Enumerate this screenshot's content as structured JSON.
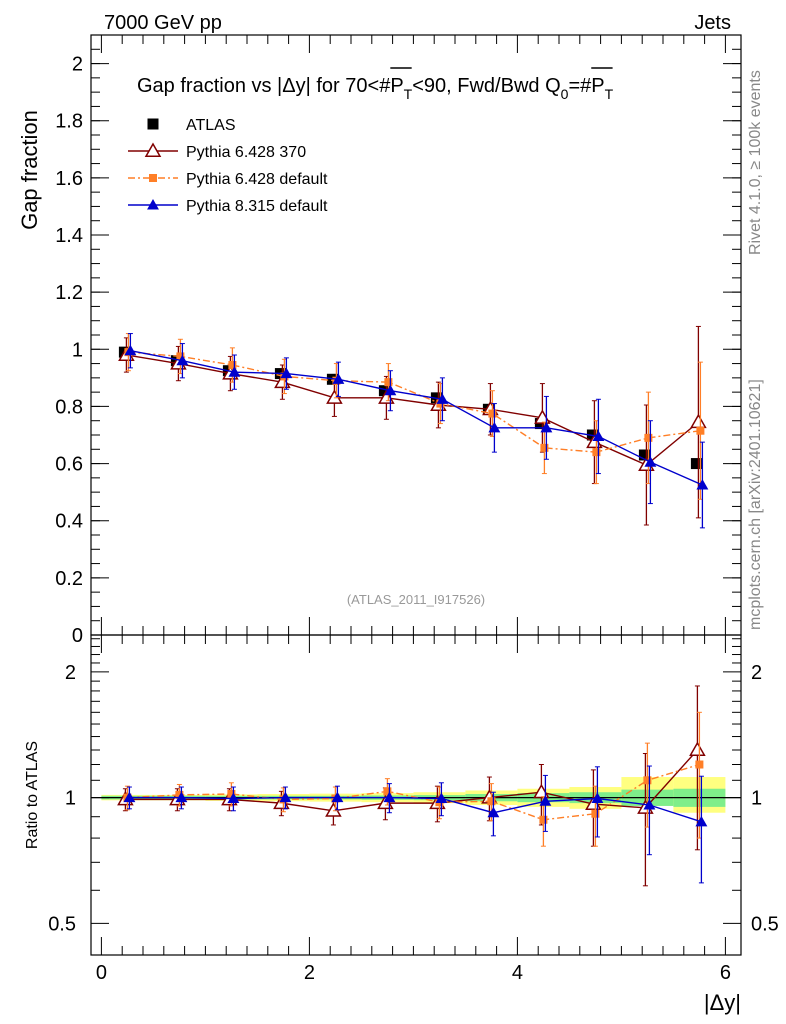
{
  "header": {
    "left": "7000 GeV pp",
    "right": "Jets"
  },
  "side_labels": {
    "rivet": "Rivet 4.1.0, ≥ 100k events",
    "mcplots": "mcplots.cern.ch [arXiv:2401.10621]"
  },
  "chart_data": [
    {
      "type": "line",
      "title": "Gap fraction vs |Δy| for 70<#P_T<90, Fwd/Bwd Q_0=#P_T",
      "title_parts": [
        "Gap fraction vs |",
        "Δy",
        "| for 70<#",
        "P",
        "T",
        "<90, Fwd/Bwd Q",
        "0",
        "=#",
        "P",
        "T"
      ],
      "ylabel": "Gap fraction",
      "xlabel": "|Δy|",
      "xlim": [
        -0.1,
        6.15
      ],
      "ylim": [
        0,
        2.1
      ],
      "yticks": [
        0,
        0.2,
        0.4,
        0.6,
        0.8,
        1,
        1.2,
        1.4,
        1.6,
        1.8,
        2
      ],
      "ytick_labels": [
        "0",
        "0.2",
        "0.4",
        "0.6",
        "0.8",
        "1",
        "1.2",
        "1.4",
        "1.6",
        "1.8",
        "2"
      ],
      "watermark": "(ATLAS_2011_I917526)",
      "x": [
        0.25,
        0.75,
        1.25,
        1.75,
        2.25,
        2.75,
        3.25,
        3.75,
        4.25,
        4.75,
        5.25,
        5.75
      ],
      "series": [
        {
          "name": "ATLAS",
          "color": "#000000",
          "marker": "square-filled",
          "line": "none",
          "values": [
            0.99,
            0.96,
            0.925,
            0.915,
            0.895,
            0.855,
            0.83,
            0.79,
            0.74,
            0.7,
            0.63,
            0.6
          ],
          "errors": [
            0.01,
            0.01,
            0.01,
            0.01,
            0.01,
            0.01,
            0.01,
            0.01,
            0.01,
            0.01,
            0.01,
            0.01
          ]
        },
        {
          "name": "Pythia 6.428 370",
          "color": "#800000",
          "marker": "triangle-open",
          "line": "solid",
          "values": [
            0.98,
            0.95,
            0.915,
            0.885,
            0.83,
            0.83,
            0.805,
            0.79,
            0.76,
            0.675,
            0.595,
            0.745
          ],
          "errors": [
            0.06,
            0.06,
            0.06,
            0.06,
            0.065,
            0.075,
            0.08,
            0.09,
            0.12,
            0.145,
            0.21,
            0.335
          ]
        },
        {
          "name": "Pythia 6.428 default",
          "color": "#ff7f27",
          "marker": "square-filled",
          "line": "dashdot",
          "values": [
            0.99,
            0.975,
            0.945,
            0.905,
            0.89,
            0.885,
            0.81,
            0.775,
            0.655,
            0.64,
            0.69,
            0.715
          ],
          "errors": [
            0.065,
            0.06,
            0.06,
            0.06,
            0.06,
            0.065,
            0.07,
            0.08,
            0.09,
            0.11,
            0.16,
            0.24
          ]
        },
        {
          "name": "Pythia 8.315 default",
          "color": "#0000cc",
          "marker": "triangle-filled",
          "line": "solid",
          "values": [
            0.995,
            0.96,
            0.92,
            0.915,
            0.895,
            0.855,
            0.825,
            0.725,
            0.725,
            0.695,
            0.605,
            0.525
          ],
          "errors": [
            0.06,
            0.06,
            0.06,
            0.055,
            0.06,
            0.07,
            0.075,
            0.085,
            0.11,
            0.13,
            0.145,
            0.15
          ]
        }
      ]
    },
    {
      "type": "line",
      "title": "",
      "ylabel": "Ratio to ATLAS",
      "xlabel": "|Δy|",
      "xlim": [
        -0.1,
        6.15
      ],
      "ylim": [
        0.42,
        2.45
      ],
      "yscale": "log",
      "yticks": [
        0.5,
        1,
        2
      ],
      "ytick_labels": [
        "0.5",
        "1",
        "2"
      ],
      "xticks": [
        0,
        2,
        4,
        6
      ],
      "xtick_labels": [
        "0",
        "2",
        "4",
        "6"
      ],
      "x": [
        0.25,
        0.75,
        1.25,
        1.75,
        2.25,
        2.75,
        3.25,
        3.75,
        4.25,
        4.75,
        5.25,
        5.75
      ],
      "bands": {
        "stat_halfwidth": [
          0.01,
          0.01,
          0.01,
          0.01,
          0.01,
          0.012,
          0.014,
          0.02,
          0.025,
          0.03,
          0.045,
          0.05
        ],
        "total_halfwidth": [
          0.015,
          0.015,
          0.018,
          0.02,
          0.022,
          0.025,
          0.03,
          0.04,
          0.05,
          0.06,
          0.08,
          0.1
        ],
        "total_center": [
          1,
          1,
          1,
          1,
          1,
          1,
          1,
          1,
          1,
          1,
          1.04,
          1.02
        ]
      },
      "series": [
        {
          "name": "Pythia 6.428 370",
          "color": "#800000",
          "marker": "triangle-open",
          "line": "solid",
          "values": [
            0.99,
            0.99,
            0.99,
            0.97,
            0.93,
            0.97,
            0.97,
            1.0,
            1.03,
            0.965,
            0.945,
            1.3
          ],
          "errors": [
            0.06,
            0.06,
            0.06,
            0.065,
            0.07,
            0.085,
            0.095,
            0.12,
            0.17,
            0.2,
            0.33,
            0.55
          ]
        },
        {
          "name": "Pythia 6.428 default",
          "color": "#ff7f27",
          "marker": "square-filled",
          "line": "dashdot",
          "values": [
            1.0,
            1.015,
            1.02,
            0.99,
            0.995,
            1.035,
            0.975,
            0.98,
            0.885,
            0.915,
            1.1,
            1.2
          ],
          "errors": [
            0.065,
            0.06,
            0.065,
            0.065,
            0.065,
            0.075,
            0.085,
            0.1,
            0.12,
            0.15,
            0.25,
            0.4
          ]
        },
        {
          "name": "Pythia 8.315 default",
          "color": "#0000cc",
          "marker": "triangle-filled",
          "line": "solid",
          "values": [
            1.0,
            1.0,
            0.995,
            1.0,
            1.0,
            1.0,
            0.995,
            0.92,
            0.98,
            0.995,
            0.96,
            0.875
          ],
          "errors": [
            0.06,
            0.06,
            0.065,
            0.06,
            0.065,
            0.08,
            0.09,
            0.11,
            0.15,
            0.19,
            0.23,
            0.25
          ]
        }
      ]
    }
  ]
}
